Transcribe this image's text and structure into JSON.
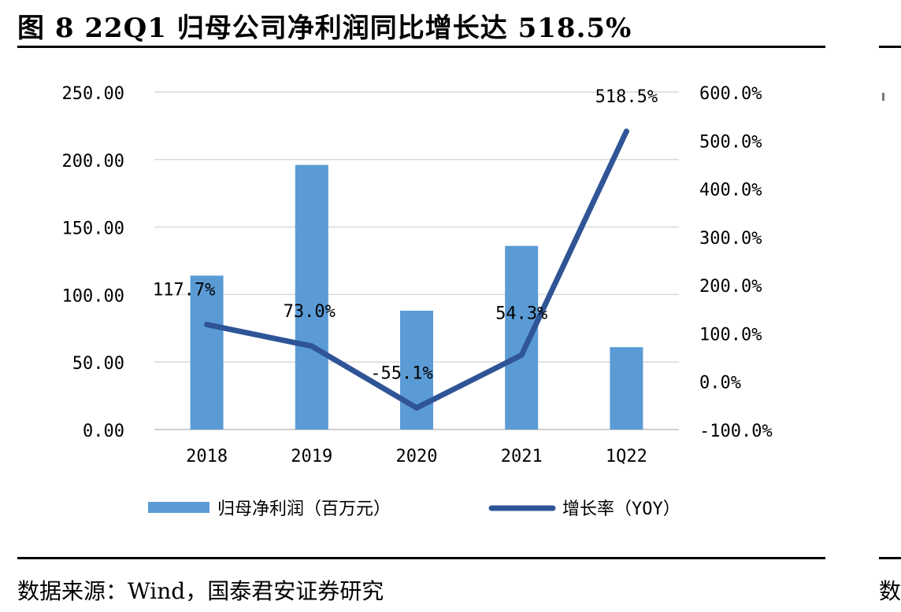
{
  "title": "图 8 22Q1 归母公司净利润同比增长达 518.5%",
  "source": "数据来源：Wind，国泰君安证券研究",
  "next_panel_fragment": "数",
  "colors": {
    "bar": "#5b9bd5",
    "line": "#2f5597",
    "grid": "#d9d9d9",
    "axis": "#bfbfbf"
  },
  "chart_data": {
    "type": "bar",
    "categories": [
      "2018",
      "2019",
      "2020",
      "2021",
      "1Q22"
    ],
    "series": [
      {
        "name": "归母净利润（百万元）",
        "type": "bar",
        "axis": "left",
        "values": [
          114.0,
          196.0,
          88.0,
          136.0,
          61.0
        ]
      },
      {
        "name": "增长率（YOY）",
        "type": "line",
        "axis": "right",
        "values": [
          117.7,
          73.0,
          -55.1,
          54.3,
          518.5
        ],
        "labels": [
          "117.7%",
          "73.0%",
          "-55.1%",
          "54.3%",
          "518.5%"
        ]
      }
    ],
    "y_left": {
      "min": 0,
      "max": 250,
      "step": 50,
      "tick_labels": [
        "0.00",
        "50.00",
        "100.00",
        "150.00",
        "200.00",
        "250.00"
      ]
    },
    "y_right": {
      "min": -100,
      "max": 600,
      "step": 100,
      "tick_labels": [
        "-100.0%",
        "0.0%",
        "100.0%",
        "200.0%",
        "300.0%",
        "400.0%",
        "500.0%",
        "600.0%"
      ]
    },
    "grid": true,
    "legend_position": "bottom"
  }
}
